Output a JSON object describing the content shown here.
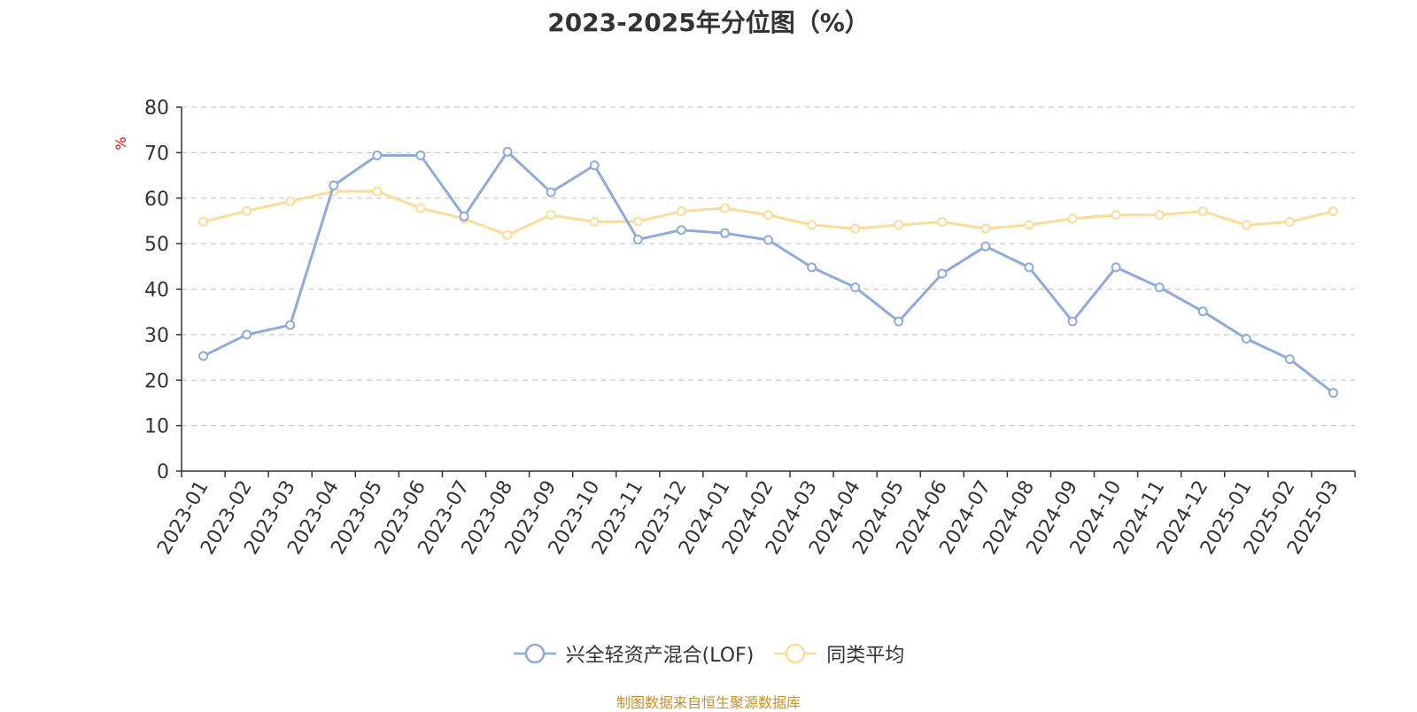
{
  "chart_data": {
    "type": "line",
    "title": "2023-2025年分位图（%）",
    "ylabel": "%",
    "xlabel": "",
    "ylim": [
      0,
      80
    ],
    "yticks": [
      0,
      10,
      20,
      30,
      40,
      50,
      60,
      70,
      80
    ],
    "grid": true,
    "legend_position": "bottom-center",
    "categories": [
      "2023-01",
      "2023-02",
      "2023-03",
      "2023-04",
      "2023-05",
      "2023-06",
      "2023-07",
      "2023-08",
      "2023-09",
      "2023-10",
      "2023-11",
      "2023-12",
      "2024-01",
      "2024-02",
      "2024-03",
      "2024-04",
      "2024-05",
      "2024-06",
      "2024-07",
      "2024-08",
      "2024-09",
      "2024-10",
      "2024-11",
      "2024-12",
      "2025-01",
      "2025-02",
      "2025-03"
    ],
    "series": [
      {
        "name": "兴全轻资产混合(LOF)",
        "color": "#8faadc",
        "values": [
          25.3,
          30.0,
          32.1,
          62.8,
          69.4,
          69.4,
          56.0,
          70.2,
          61.3,
          67.2,
          50.9,
          53.0,
          52.3,
          50.8,
          44.8,
          40.4,
          32.9,
          43.4,
          49.4,
          44.8,
          32.9,
          44.8,
          40.4,
          35.1,
          29.1,
          24.6,
          17.2
        ]
      },
      {
        "name": "同类平均",
        "color": "#fddb99",
        "values": [
          54.8,
          57.2,
          59.3,
          61.5,
          61.5,
          57.8,
          55.5,
          51.9,
          56.3,
          54.8,
          54.9,
          57.1,
          57.8,
          56.3,
          54.1,
          53.3,
          54.1,
          54.8,
          53.3,
          54.1,
          55.5,
          56.3,
          56.3,
          57.1,
          54.1,
          54.8,
          57.1
        ]
      }
    ]
  },
  "source_text": "制图数据来自恒生聚源数据库",
  "colors": {
    "axis": "#333333",
    "grid": "#cccccc",
    "ylabel": "#ff0000",
    "source": "#c8922a"
  }
}
